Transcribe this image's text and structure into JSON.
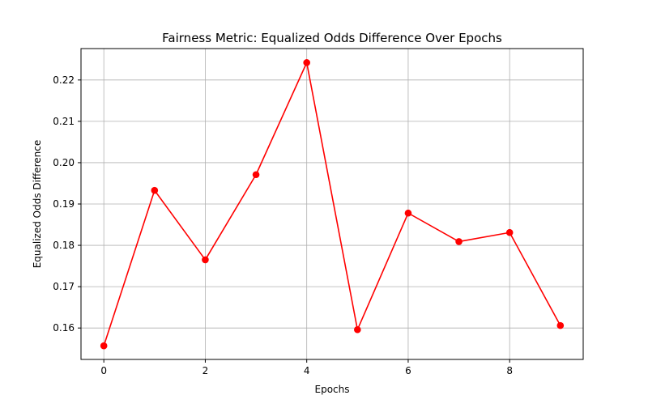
{
  "chart_data": {
    "type": "line",
    "title": "Fairness Metric: Equalized Odds Difference Over Epochs",
    "xlabel": "Epochs",
    "ylabel": "Equalized Odds Difference",
    "x": [
      0,
      1,
      2,
      3,
      4,
      5,
      6,
      7,
      8,
      9
    ],
    "series": [
      {
        "values": [
          0.1557,
          0.1933,
          0.1765,
          0.1971,
          0.2242,
          0.1596,
          0.1878,
          0.1809,
          0.1831,
          0.1606
        ],
        "color": "#ff0000",
        "marker": "circle"
      }
    ],
    "xticks": [
      0,
      2,
      4,
      6,
      8
    ],
    "xtick_labels": [
      "0",
      "2",
      "4",
      "6",
      "8"
    ],
    "yticks": [
      0.16,
      0.17,
      0.18,
      0.19,
      0.2,
      0.21,
      0.22
    ],
    "ytick_labels": [
      "0.16",
      "0.17",
      "0.18",
      "0.19",
      "0.20",
      "0.21",
      "0.22"
    ],
    "xlim": [
      -0.45,
      9.45
    ],
    "ylim": [
      0.1524,
      0.2276
    ],
    "grid": true,
    "legend": "none"
  }
}
